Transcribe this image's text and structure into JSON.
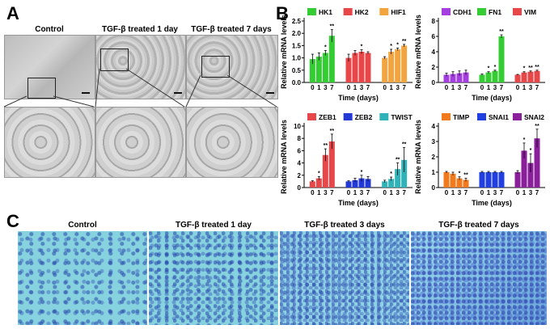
{
  "labels": {
    "A": "A",
    "B": "B",
    "C": "C"
  },
  "panel_a": {
    "captions": [
      "Control",
      "TGF-β treated 1 day",
      "TGF-β treated 7 days"
    ]
  },
  "panel_c": {
    "captions": [
      "Control",
      "TGF-β treated 1 day",
      "TGF-β treated 3 days",
      "TGF-β treated 7 days"
    ]
  },
  "chart_data": [
    {
      "type": "bar",
      "ylabel": "Relative mRNA levels",
      "xlabel": "Time (days)",
      "ylim": [
        0,
        2.5
      ],
      "yticks": [
        "0.0",
        "0.5",
        "1.0",
        "1.5",
        "2.0",
        "2.5"
      ],
      "categories": [
        "0",
        "1",
        "3",
        "7"
      ],
      "legend_position": "top",
      "series": [
        {
          "name": "HK1",
          "color": "#33cc33",
          "values": [
            0.95,
            1.05,
            1.2,
            1.9
          ],
          "errors": [
            0.2,
            0.15,
            0.1,
            0.25
          ],
          "sig": [
            "",
            "",
            "*",
            "**"
          ]
        },
        {
          "name": "HK2",
          "color": "#e8474a",
          "values": [
            1.0,
            1.2,
            1.25,
            1.2
          ],
          "errors": [
            0.15,
            0.1,
            0.08,
            0.05
          ],
          "sig": [
            "",
            "",
            "*",
            ""
          ]
        },
        {
          "name": "HIF1",
          "color": "#f2a53f",
          "values": [
            1.0,
            1.25,
            1.35,
            1.5
          ],
          "errors": [
            0.05,
            0.1,
            0.05,
            0.05
          ],
          "sig": [
            "",
            "*",
            "*",
            "**"
          ]
        }
      ]
    },
    {
      "type": "bar",
      "ylabel": "Relative mRNA levels",
      "xlabel": "Time (days)",
      "ylim": [
        0,
        8
      ],
      "yticks": [
        "0",
        "2",
        "4",
        "6",
        "8"
      ],
      "categories": [
        "0",
        "1",
        "3",
        "7"
      ],
      "legend_position": "top",
      "series": [
        {
          "name": "CDH1",
          "color": "#a43ee0",
          "values": [
            1.0,
            1.1,
            1.2,
            1.3
          ],
          "errors": [
            0.2,
            0.3,
            0.3,
            0.3
          ],
          "sig": [
            "",
            "",
            "",
            ""
          ]
        },
        {
          "name": "FN1",
          "color": "#33cc33",
          "values": [
            1.0,
            1.3,
            1.5,
            6.0
          ],
          "errors": [
            0.1,
            0.1,
            0.1,
            0.2
          ],
          "sig": [
            "",
            "*",
            "*",
            "**"
          ]
        },
        {
          "name": "VIM",
          "color": "#e8474a",
          "values": [
            1.0,
            1.3,
            1.4,
            1.5
          ],
          "errors": [
            0.05,
            0.1,
            0.1,
            0.1
          ],
          "sig": [
            "",
            "*",
            "**",
            "**"
          ]
        }
      ]
    },
    {
      "type": "bar",
      "ylabel": "Relative mRNA levels",
      "xlabel": "Time (days)",
      "ylim": [
        0,
        10
      ],
      "yticks": [
        "0",
        "2",
        "4",
        "6",
        "8",
        "10"
      ],
      "categories": [
        "0",
        "1",
        "3",
        "7"
      ],
      "legend_position": "top",
      "series": [
        {
          "name": "ZEB1",
          "color": "#e8474a",
          "values": [
            1.0,
            1.5,
            5.3,
            7.5
          ],
          "errors": [
            0.1,
            0.3,
            1.0,
            1.2
          ],
          "sig": [
            "",
            "*",
            "**",
            "**"
          ]
        },
        {
          "name": "ZEB2",
          "color": "#2239d6",
          "values": [
            1.0,
            1.2,
            1.5,
            1.4
          ],
          "errors": [
            0.1,
            0.3,
            0.5,
            0.4
          ],
          "sig": [
            "",
            "",
            "*",
            ""
          ]
        },
        {
          "name": "TWIST",
          "color": "#2fb3b8",
          "values": [
            1.0,
            1.4,
            3.0,
            4.5
          ],
          "errors": [
            0.2,
            0.3,
            1.0,
            2.0
          ],
          "sig": [
            "",
            "*",
            "**",
            "**"
          ]
        }
      ]
    },
    {
      "type": "bar",
      "ylabel": "Relative mRNA levels",
      "xlabel": "Time (days)",
      "ylim": [
        0,
        4
      ],
      "yticks": [
        "0",
        "1",
        "2",
        "3",
        "4"
      ],
      "categories": [
        "0",
        "1",
        "3",
        "7"
      ],
      "legend_position": "top",
      "series": [
        {
          "name": "TIMP",
          "color": "#f27a1a",
          "values": [
            1.0,
            0.9,
            0.6,
            0.5
          ],
          "errors": [
            0.05,
            0.1,
            0.1,
            0.1
          ],
          "sig": [
            "",
            "",
            "*",
            "**"
          ]
        },
        {
          "name": "SNAI1",
          "color": "#1f3fe0",
          "values": [
            1.0,
            1.0,
            1.0,
            1.0
          ],
          "errors": [
            0.05,
            0.05,
            0.05,
            0.05
          ],
          "sig": [
            "",
            "",
            "",
            ""
          ]
        },
        {
          "name": "SNAI2",
          "color": "#8a1e9b",
          "values": [
            1.0,
            2.4,
            1.6,
            3.2
          ],
          "errors": [
            0.1,
            0.5,
            0.6,
            0.6
          ],
          "sig": [
            "",
            "*",
            "*",
            "**"
          ]
        }
      ]
    }
  ]
}
